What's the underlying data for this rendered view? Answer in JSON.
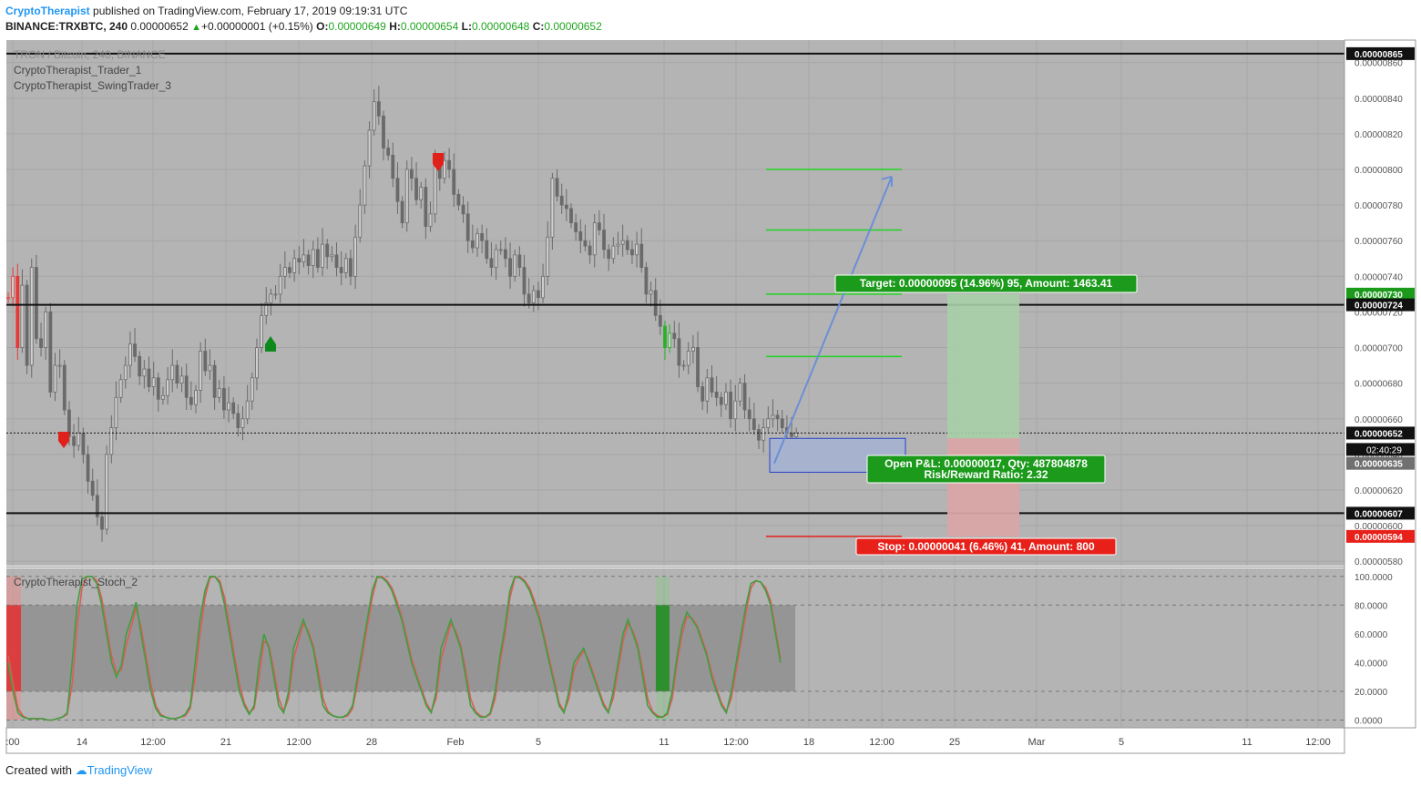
{
  "header": {
    "author": "CryptoTherapist",
    "published_text": "published on TradingView.com, February 17, 2019 09:19:31 UTC",
    "symbol": "BINANCE:TRXBTC, 240",
    "price": "0.00000652",
    "change": "+0.00000001 (+0.15%)",
    "o_label": "O:",
    "o": "0.00000649",
    "h_label": "H:",
    "h": "0.00000654",
    "l_label": "L:",
    "l": "0.00000648",
    "c_label": "C:",
    "c": "0.00000652"
  },
  "legend": {
    "title": "TRON / Bitcoin, 240, BINANCE",
    "study1": "CryptoTherapist_Trader_1",
    "study2": "CryptoTherapist_SwingTrader_3",
    "stoch": "CryptoTherapist_Stoch_2"
  },
  "footer": {
    "created": "Created with",
    "brand": "TradingView"
  },
  "colors": {
    "pane": "#b4b4b4",
    "up": "#2bb02b",
    "down": "#e53935",
    "stoch_k": "#3f9f3f",
    "stoch_d": "#e05a5a",
    "arrow": "#6b8fd6"
  },
  "chart_data": {
    "type": "candlestick",
    "yaxis_ticks": [
      "0.00000860",
      "0.00000840",
      "0.00000820",
      "0.00000800",
      "0.00000780",
      "0.00000760",
      "0.00000740",
      "0.00000720",
      "0.00000700",
      "0.00000680",
      "0.00000660",
      "0.00000640",
      "0.00000620",
      "0.00000600",
      "0.00000580"
    ],
    "xaxis_ticks": [
      ":00",
      "14",
      "12:00",
      "21",
      "12:00",
      "28",
      "Feb",
      "5",
      "11",
      "12:00",
      "18",
      "12:00",
      "25",
      "Mar",
      "5",
      "11",
      "12:00"
    ],
    "price_labels": [
      {
        "price": 865,
        "text": "0.00000865",
        "style": "black"
      },
      {
        "price": 730,
        "text": "0.00000730",
        "style": "green"
      },
      {
        "price": 724,
        "text": "0.00000724",
        "style": "black"
      },
      {
        "price": 652,
        "text": "0.00000652",
        "style": "black"
      },
      {
        "price": 635,
        "text": "0.00000635",
        "style": "gray"
      },
      {
        "price": 607,
        "text": "0.00000607",
        "style": "black"
      },
      {
        "price": 594,
        "text": "0.00000594",
        "style": "red"
      }
    ],
    "countdown": "02:40:29",
    "horizontal_levels": [
      865,
      724,
      607
    ],
    "last_price": 652,
    "target_lines": [
      800,
      766,
      730,
      695
    ],
    "stop_line": 594,
    "entry_box": [
      649,
      630
    ],
    "target_box": "Target: 0.00000095 (14.96%) 95, Amount: 1463.41",
    "pnl_box_line1": "Open P&L: 0.00000017, Qty: 487804878",
    "pnl_box_line2": "Risk/Reward Ratio: 2.32",
    "stop_box": "Stop: 0.00000041 (6.46%) 41, Amount: 800",
    "closes": [
      728,
      740,
      700,
      735,
      690,
      745,
      705,
      700,
      720,
      675,
      690,
      690,
      665,
      650,
      645,
      652,
      640,
      625,
      617,
      605,
      598,
      640,
      655,
      672,
      682,
      690,
      702,
      695,
      684,
      688,
      678,
      683,
      671,
      673,
      682,
      690,
      680,
      684,
      672,
      668,
      676,
      698,
      687,
      690,
      672,
      677,
      665,
      669,
      663,
      655,
      660,
      670,
      683,
      700,
      718,
      725,
      730,
      730,
      740,
      745,
      742,
      750,
      748,
      752,
      746,
      755,
      745,
      758,
      751,
      752,
      745,
      742,
      750,
      740,
      762,
      780,
      802,
      822,
      838,
      830,
      812,
      808,
      795,
      782,
      770,
      800,
      795,
      783,
      790,
      768,
      775,
      802,
      795,
      805,
      800,
      786,
      780,
      775,
      760,
      756,
      764,
      760,
      750,
      745,
      755,
      755,
      750,
      740,
      752,
      745,
      730,
      725,
      732,
      728,
      740,
      762,
      795,
      785,
      780,
      778,
      770,
      765,
      760,
      757,
      752,
      770,
      766,
      755,
      750,
      757,
      758,
      760,
      755,
      752,
      758,
      745,
      730,
      732,
      718,
      712,
      700,
      708,
      705,
      690,
      690,
      698,
      700,
      678,
      670,
      683,
      675,
      672,
      668,
      675,
      660,
      670,
      680,
      665,
      660,
      654,
      648,
      655,
      660,
      662,
      660,
      655,
      652,
      650,
      652
    ],
    "stochastic": {
      "levels": [
        100,
        80,
        20,
        0
      ],
      "ticks": [
        "100.0000",
        "80.0000",
        "60.0000",
        "40.0000",
        "20.0000",
        "0.0000"
      ],
      "k": [
        40,
        20,
        5,
        2,
        1,
        1,
        1,
        1,
        0,
        0,
        1,
        2,
        5,
        40,
        80,
        98,
        100,
        100,
        95,
        80,
        60,
        40,
        30,
        38,
        60,
        70,
        82,
        60,
        40,
        20,
        8,
        3,
        2,
        1,
        1,
        2,
        4,
        10,
        40,
        70,
        90,
        100,
        100,
        95,
        80,
        60,
        40,
        20,
        10,
        4,
        10,
        40,
        60,
        50,
        30,
        10,
        5,
        20,
        50,
        60,
        70,
        60,
        50,
        30,
        10,
        5,
        3,
        2,
        2,
        4,
        10,
        30,
        50,
        70,
        90,
        100,
        99,
        96,
        90,
        80,
        70,
        55,
        40,
        30,
        20,
        10,
        5,
        20,
        50,
        60,
        70,
        60,
        50,
        30,
        10,
        5,
        2,
        2,
        5,
        20,
        45,
        65,
        90,
        100,
        99,
        96,
        90,
        80,
        70,
        55,
        40,
        25,
        10,
        5,
        20,
        40,
        45,
        50,
        40,
        30,
        20,
        10,
        5,
        20,
        40,
        60,
        70,
        60,
        50,
        30,
        10,
        5,
        2,
        2,
        5,
        20,
        45,
        65,
        75,
        70,
        65,
        55,
        45,
        30,
        20,
        10,
        5,
        20,
        40,
        60,
        80,
        95,
        97,
        96,
        90,
        80,
        60,
        40
      ],
      "d": [
        45,
        25,
        8,
        3,
        1,
        1,
        1,
        1,
        0,
        0,
        1,
        2,
        4,
        25,
        65,
        92,
        100,
        100,
        97,
        85,
        65,
        45,
        33,
        35,
        52,
        65,
        78,
        65,
        45,
        25,
        10,
        4,
        2,
        1,
        1,
        2,
        3,
        8,
        30,
        60,
        85,
        99,
        100,
        97,
        85,
        65,
        45,
        25,
        12,
        5,
        8,
        30,
        55,
        52,
        35,
        15,
        6,
        15,
        42,
        55,
        67,
        62,
        52,
        35,
        15,
        6,
        3,
        2,
        2,
        3,
        8,
        25,
        45,
        65,
        85,
        99,
        100,
        97,
        92,
        83,
        72,
        58,
        43,
        32,
        22,
        12,
        6,
        15,
        42,
        55,
        67,
        62,
        52,
        35,
        15,
        6,
        3,
        2,
        4,
        15,
        40,
        60,
        85,
        99,
        100,
        97,
        92,
        83,
        72,
        58,
        43,
        28,
        12,
        6,
        15,
        35,
        43,
        48,
        42,
        32,
        22,
        12,
        6,
        15,
        35,
        55,
        67,
        62,
        52,
        35,
        15,
        6,
        3,
        2,
        4,
        15,
        40,
        60,
        72,
        71,
        66,
        57,
        47,
        33,
        22,
        12,
        6,
        15,
        35,
        55,
        75,
        92,
        97,
        96,
        92,
        83,
        63,
        43
      ]
    }
  }
}
